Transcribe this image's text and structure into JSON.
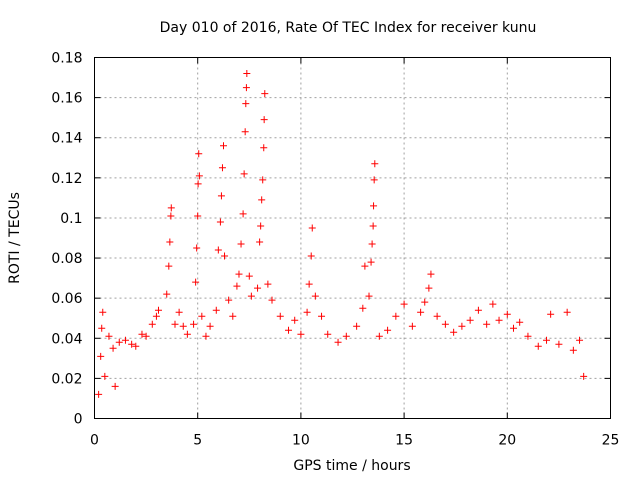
{
  "chart_data": {
    "type": "scatter",
    "title": "Day 010 of 2016, Rate Of TEC Index for receiver kunu",
    "xlabel": "GPS time / hours",
    "ylabel": "ROTI / TECUs",
    "xlim": [
      0,
      25
    ],
    "ylim": [
      0,
      0.18
    ],
    "xticks": [
      0,
      5,
      10,
      15,
      20,
      25
    ],
    "xtick_labels": [
      "0",
      "5",
      "10",
      "15",
      "20",
      "25"
    ],
    "yticks": [
      0,
      0.02,
      0.04,
      0.06,
      0.08,
      0.1,
      0.12,
      0.14,
      0.16,
      0.18
    ],
    "ytick_labels": [
      "0",
      "0.02",
      "0.04",
      "0.06",
      "0.08",
      "0.1",
      "0.12",
      "0.14",
      "0.16",
      "0.18"
    ],
    "grid": true,
    "marker": "+",
    "color": "#ff0000",
    "series": [
      {
        "name": "ROTI",
        "points": [
          [
            0.2,
            0.012
          ],
          [
            0.3,
            0.031
          ],
          [
            0.35,
            0.045
          ],
          [
            0.4,
            0.053
          ],
          [
            0.5,
            0.021
          ],
          [
            0.7,
            0.041
          ],
          [
            0.9,
            0.035
          ],
          [
            1.0,
            0.016
          ],
          [
            1.2,
            0.038
          ],
          [
            1.5,
            0.039
          ],
          [
            1.8,
            0.037
          ],
          [
            2.0,
            0.036
          ],
          [
            2.3,
            0.042
          ],
          [
            2.5,
            0.041
          ],
          [
            2.8,
            0.047
          ],
          [
            3.0,
            0.051
          ],
          [
            3.1,
            0.054
          ],
          [
            3.5,
            0.062
          ],
          [
            3.6,
            0.076
          ],
          [
            3.65,
            0.088
          ],
          [
            3.7,
            0.101
          ],
          [
            3.72,
            0.105
          ],
          [
            3.9,
            0.047
          ],
          [
            4.1,
            0.053
          ],
          [
            4.3,
            0.046
          ],
          [
            4.5,
            0.042
          ],
          [
            4.8,
            0.047
          ],
          [
            4.9,
            0.068
          ],
          [
            4.95,
            0.085
          ],
          [
            5.0,
            0.101
          ],
          [
            5.02,
            0.117
          ],
          [
            5.05,
            0.132
          ],
          [
            5.08,
            0.121
          ],
          [
            5.2,
            0.051
          ],
          [
            5.4,
            0.041
          ],
          [
            5.6,
            0.046
          ],
          [
            5.9,
            0.054
          ],
          [
            6.0,
            0.084
          ],
          [
            6.1,
            0.098
          ],
          [
            6.15,
            0.111
          ],
          [
            6.2,
            0.125
          ],
          [
            6.25,
            0.136
          ],
          [
            6.3,
            0.081
          ],
          [
            6.5,
            0.059
          ],
          [
            6.7,
            0.051
          ],
          [
            6.9,
            0.066
          ],
          [
            7.0,
            0.072
          ],
          [
            7.1,
            0.087
          ],
          [
            7.2,
            0.102
          ],
          [
            7.25,
            0.122
          ],
          [
            7.3,
            0.143
          ],
          [
            7.33,
            0.157
          ],
          [
            7.36,
            0.165
          ],
          [
            7.38,
            0.172
          ],
          [
            7.5,
            0.071
          ],
          [
            7.6,
            0.061
          ],
          [
            7.9,
            0.065
          ],
          [
            8.0,
            0.088
          ],
          [
            8.05,
            0.096
          ],
          [
            8.1,
            0.109
          ],
          [
            8.15,
            0.119
          ],
          [
            8.2,
            0.135
          ],
          [
            8.22,
            0.149
          ],
          [
            8.25,
            0.162
          ],
          [
            8.4,
            0.067
          ],
          [
            8.6,
            0.059
          ],
          [
            9.0,
            0.051
          ],
          [
            9.4,
            0.044
          ],
          [
            9.7,
            0.049
          ],
          [
            10.0,
            0.042
          ],
          [
            10.3,
            0.053
          ],
          [
            10.4,
            0.067
          ],
          [
            10.5,
            0.081
          ],
          [
            10.55,
            0.095
          ],
          [
            10.7,
            0.061
          ],
          [
            11.0,
            0.051
          ],
          [
            11.3,
            0.042
          ],
          [
            11.8,
            0.038
          ],
          [
            12.2,
            0.041
          ],
          [
            12.7,
            0.046
          ],
          [
            13.0,
            0.055
          ],
          [
            13.1,
            0.076
          ],
          [
            13.3,
            0.061
          ],
          [
            13.4,
            0.078
          ],
          [
            13.45,
            0.087
          ],
          [
            13.5,
            0.096
          ],
          [
            13.52,
            0.106
          ],
          [
            13.55,
            0.119
          ],
          [
            13.58,
            0.127
          ],
          [
            13.8,
            0.041
          ],
          [
            14.2,
            0.044
          ],
          [
            14.6,
            0.051
          ],
          [
            15.0,
            0.057
          ],
          [
            15.4,
            0.046
          ],
          [
            15.8,
            0.053
          ],
          [
            16.0,
            0.058
          ],
          [
            16.2,
            0.065
          ],
          [
            16.3,
            0.072
          ],
          [
            16.6,
            0.051
          ],
          [
            17.0,
            0.047
          ],
          [
            17.4,
            0.043
          ],
          [
            17.8,
            0.046
          ],
          [
            18.2,
            0.049
          ],
          [
            18.6,
            0.054
          ],
          [
            19.0,
            0.047
          ],
          [
            19.3,
            0.057
          ],
          [
            19.6,
            0.049
          ],
          [
            20.0,
            0.052
          ],
          [
            20.3,
            0.045
          ],
          [
            20.6,
            0.048
          ],
          [
            21.0,
            0.041
          ],
          [
            21.5,
            0.036
          ],
          [
            21.9,
            0.039
          ],
          [
            22.1,
            0.052
          ],
          [
            22.5,
            0.037
          ],
          [
            22.9,
            0.053
          ],
          [
            23.2,
            0.034
          ],
          [
            23.5,
            0.039
          ],
          [
            23.7,
            0.021
          ]
        ]
      }
    ]
  }
}
